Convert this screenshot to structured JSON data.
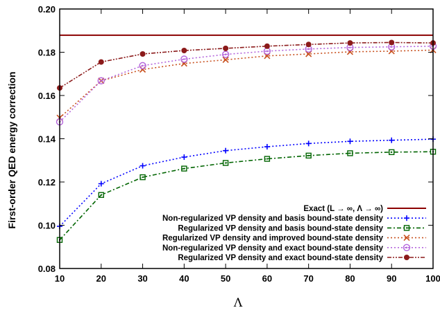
{
  "chart_data": {
    "type": "line",
    "title": "",
    "xlabel": "Λ",
    "ylabel": "First-order QED energy correction",
    "xlim": [
      10,
      100
    ],
    "ylim": [
      0.08,
      0.2
    ],
    "xticks": [
      10,
      20,
      30,
      40,
      50,
      60,
      70,
      80,
      90,
      100
    ],
    "yticks": [
      0.08,
      0.1,
      0.12,
      0.14,
      0.16,
      0.18,
      0.2
    ],
    "xtick_labels": [
      "10",
      "20",
      "30",
      "40",
      "50",
      "60",
      "70",
      "80",
      "90",
      "100"
    ],
    "ytick_labels": [
      "0.08",
      "0.10",
      "0.12",
      "0.14",
      "0.16",
      "0.18",
      "0.20"
    ],
    "grid": false,
    "legend_position": "bottom-right",
    "reference_line": {
      "name": "Exact (L → ∞, Λ → ∞)",
      "y": 0.1879,
      "color": "#8b0000"
    },
    "x": [
      10,
      20,
      30,
      40,
      50,
      60,
      70,
      80,
      90,
      100
    ],
    "series": [
      {
        "name": "Non-regularized VP density and basis bound-state density",
        "color": "#0000ff",
        "marker": "plus",
        "dash": "dotted",
        "values": [
          0.0995,
          0.1192,
          0.1275,
          0.1315,
          0.1345,
          0.1363,
          0.1378,
          0.1388,
          0.1393,
          0.1398
        ]
      },
      {
        "name": "Regularized VP density and basis bound-state density",
        "color": "#006400",
        "marker": "boxed-dot",
        "dash": "dashdot",
        "values": [
          0.0932,
          0.114,
          0.1222,
          0.1262,
          0.1288,
          0.1307,
          0.1322,
          0.1333,
          0.1338,
          0.134
        ]
      },
      {
        "name": "Regularized VP density and improved bound-state density",
        "color": "#c8501e",
        "marker": "x",
        "dash": "dotted",
        "values": [
          0.1497,
          0.1668,
          0.172,
          0.1748,
          0.1765,
          0.1783,
          0.1792,
          0.1802,
          0.1805,
          0.181
        ]
      },
      {
        "name": "Non-regularized VP density and exact bound-state density",
        "color": "#b464dc",
        "marker": "circle-dot",
        "dash": "dotted",
        "values": [
          0.1478,
          0.1668,
          0.1738,
          0.1768,
          0.179,
          0.1805,
          0.1815,
          0.1822,
          0.1825,
          0.1828
        ]
      },
      {
        "name": "Regularized VP density and exact bound-state density",
        "color": "#8b1a1a",
        "marker": "filled-circle",
        "dash": "dashdotdot",
        "values": [
          0.1635,
          0.1755,
          0.1792,
          0.1808,
          0.1818,
          0.1828,
          0.1836,
          0.1843,
          0.1845,
          0.1843
        ]
      }
    ]
  }
}
